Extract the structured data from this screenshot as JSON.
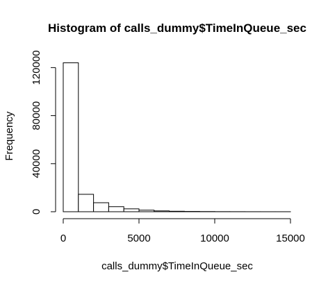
{
  "chart_data": {
    "type": "bar",
    "title": "Histogram of calls_dummy$TimeInQueue_sec",
    "xlabel": "calls_dummy$TimeInQueue_sec",
    "ylabel": "Frequency",
    "bin_width": 1000,
    "bins": [
      {
        "x0": 0,
        "x1": 1000,
        "count": 124000
      },
      {
        "x0": 1000,
        "x1": 2000,
        "count": 14500
      },
      {
        "x0": 2000,
        "x1": 3000,
        "count": 7500
      },
      {
        "x0": 3000,
        "x1": 4000,
        "count": 4200
      },
      {
        "x0": 4000,
        "x1": 5000,
        "count": 2400
      },
      {
        "x0": 5000,
        "x1": 6000,
        "count": 1300
      },
      {
        "x0": 6000,
        "x1": 7000,
        "count": 700
      },
      {
        "x0": 7000,
        "x1": 8000,
        "count": 400
      },
      {
        "x0": 8000,
        "x1": 9000,
        "count": 250
      },
      {
        "x0": 9000,
        "x1": 10000,
        "count": 150
      },
      {
        "x0": 10000,
        "x1": 11000,
        "count": 80
      },
      {
        "x0": 11000,
        "x1": 12000,
        "count": 50
      },
      {
        "x0": 12000,
        "x1": 13000,
        "count": 30
      },
      {
        "x0": 13000,
        "x1": 14000,
        "count": 20
      },
      {
        "x0": 14000,
        "x1": 15000,
        "count": 10
      }
    ],
    "xlim": [
      0,
      15000
    ],
    "ylim": [
      0,
      126000
    ],
    "x_ticks": [
      0,
      5000,
      10000,
      15000
    ],
    "y_ticks": [
      0,
      40000,
      80000,
      120000
    ],
    "x_tick_labels": [
      "0",
      "5000",
      "10000",
      "15000"
    ],
    "y_tick_labels": [
      "0",
      "40000",
      "80000",
      "120000"
    ],
    "grid": false,
    "legend": "none",
    "bar_fill": "#ffffff",
    "bar_stroke": "#000000"
  }
}
